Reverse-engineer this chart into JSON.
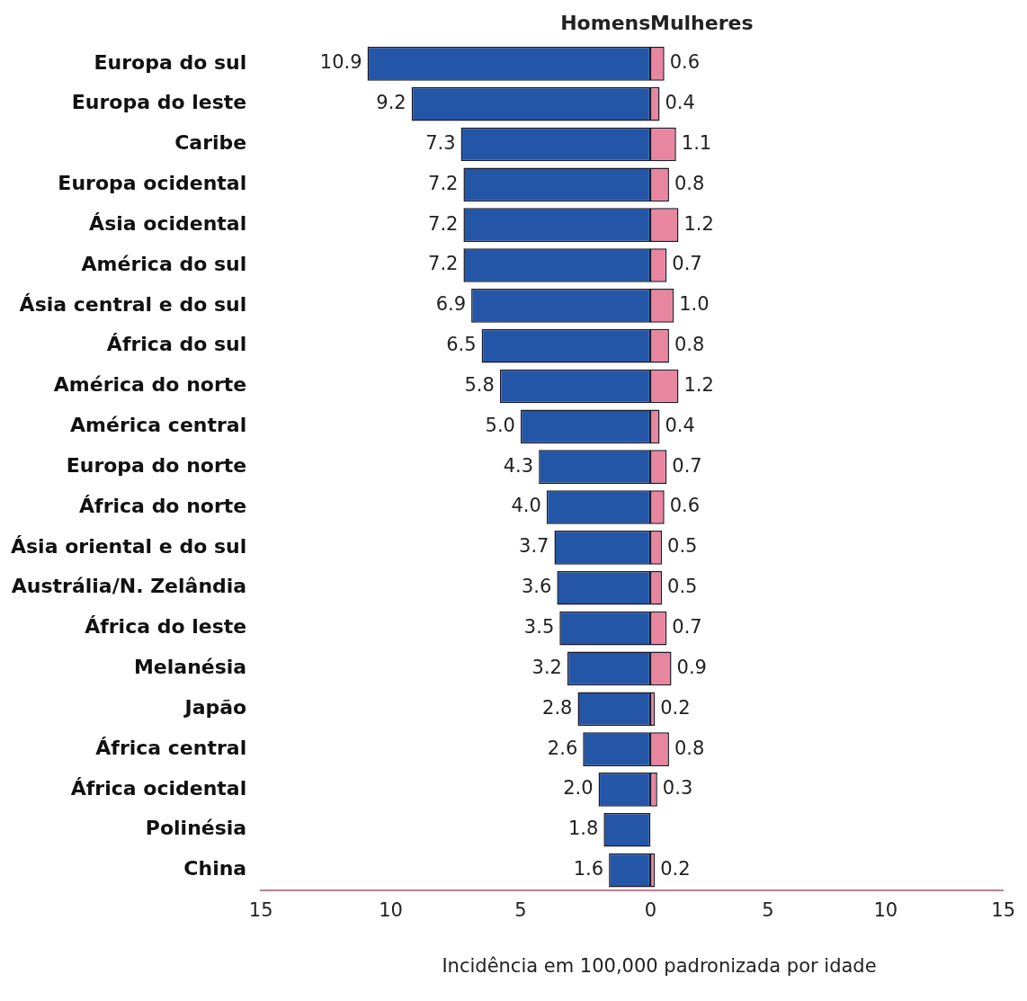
{
  "chart_data": [
    {
      "type": "bar",
      "orientation": "horizontal",
      "title": "Homens",
      "xlabel": "Incidência em 100,000 padronizada por idade",
      "categories": [
        "Europa do sul",
        "Europa do leste",
        "Caribe",
        "Europa ocidental",
        "Ásia ocidental",
        "América do sul",
        "Ásia central e do sul",
        "África do sul",
        "América do norte",
        "América central",
        "Europa do norte",
        "África do norte",
        "Ásia oriental e do sul",
        "Austrália/N. Zelândia",
        "África do leste",
        "Melanésia",
        "Japão",
        "África central",
        "África ocidental",
        "Polinésia",
        "China"
      ],
      "series": [
        {
          "color": "#2456a8",
          "values": [
            10.9,
            9.2,
            7.3,
            7.2,
            7.2,
            7.2,
            6.9,
            6.5,
            5.8,
            5.0,
            4.3,
            4.0,
            3.7,
            3.6,
            3.5,
            3.2,
            2.8,
            2.6,
            2.0,
            1.8,
            1.6
          ],
          "value_labels": [
            "10.9",
            "9.2",
            "7.3",
            "7.2",
            "7.2",
            "7.2",
            "6.9",
            "6.5",
            "5.8",
            "5.0",
            "4.3",
            "4.0",
            "3.7",
            "3.6",
            "3.5",
            "3.2",
            "2.8",
            "2.6",
            "2.0",
            "1.8",
            "1.6"
          ]
        }
      ],
      "xlim": [
        15,
        0
      ],
      "xticks": [
        15,
        10,
        5,
        0
      ],
      "grid": false,
      "legend": false
    },
    {
      "type": "bar",
      "orientation": "horizontal",
      "title": "Mulheres",
      "categories": [
        null,
        null,
        null,
        null,
        null,
        null,
        null,
        null,
        null,
        null,
        null,
        null,
        null,
        null,
        null,
        null,
        null,
        null,
        null,
        null,
        null
      ],
      "series": [
        {
          "color": "#e8859f",
          "values": [
            0.6,
            0.4,
            1.1,
            0.8,
            1.2,
            0.7,
            1.0,
            0.8,
            1.2,
            0.4,
            0.7,
            0.6,
            0.5,
            0.5,
            0.7,
            0.9,
            0.2,
            0.8,
            0.3,
            null,
            0.2
          ],
          "value_labels": [
            "0.6",
            "0.4",
            "1.1",
            "0.8",
            "1.2",
            "0.7",
            "1.0",
            "0.8",
            "1.2",
            "0.4",
            "0.7",
            "0.6",
            "0.5",
            "0.5",
            "0.7",
            "0.9",
            "0.2",
            "0.8",
            "0.3",
            null,
            "0.2"
          ]
        }
      ],
      "xlim": [
        0,
        15
      ],
      "xticks": [
        5,
        10,
        15
      ],
      "tick_labels": "x",
      "grid": false,
      "legend": false
    }
  ]
}
